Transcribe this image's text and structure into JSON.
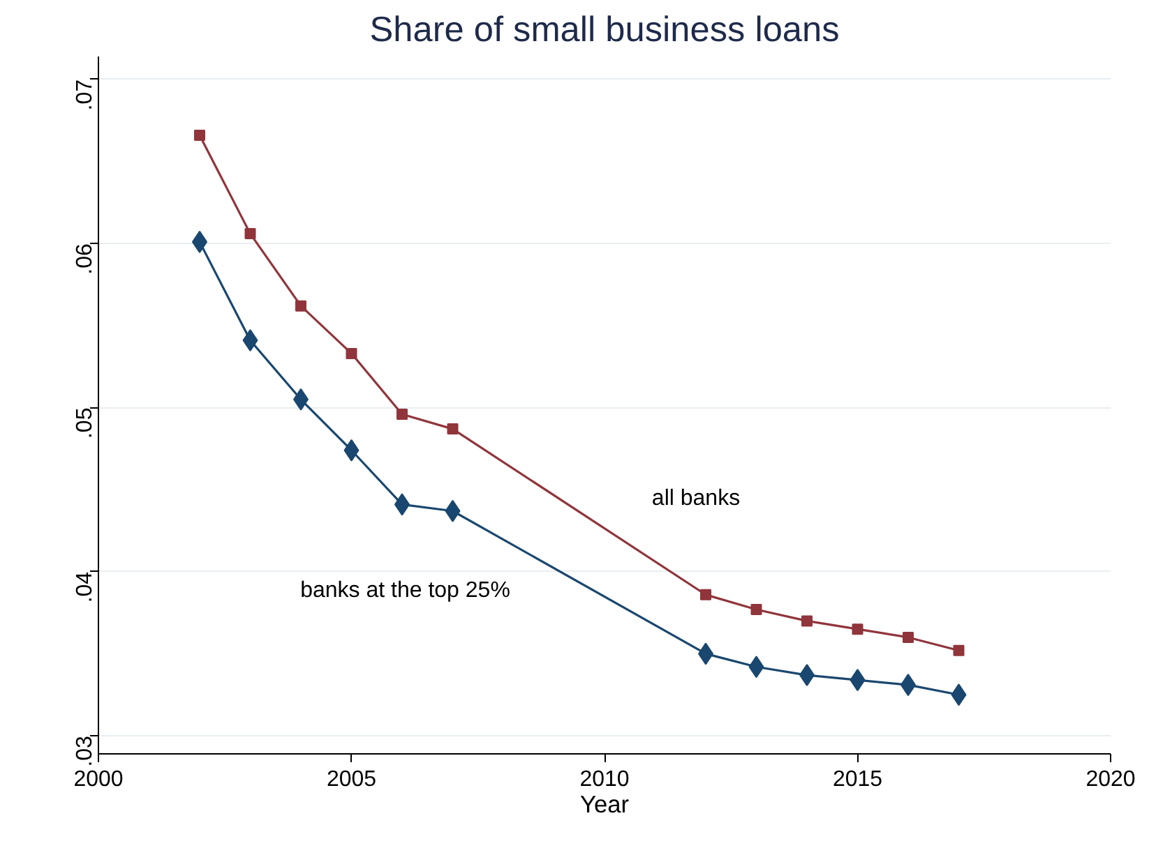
{
  "chart_data": {
    "type": "line",
    "title": "Share of small business loans",
    "xlabel": "Year",
    "x": [
      2002,
      2003,
      2004,
      2005,
      2006,
      2007,
      2012,
      2013,
      2014,
      2015,
      2016,
      2017
    ],
    "series": [
      {
        "name": "all banks",
        "color": "#90353b",
        "marker": "square",
        "values": [
          0.0666,
          0.0606,
          0.0562,
          0.0533,
          0.0496,
          0.0487,
          0.0386,
          0.0377,
          0.037,
          0.0365,
          0.036,
          0.0352
        ]
      },
      {
        "name": "banks at the top 25%",
        "color": "#1a476f",
        "marker": "diamond",
        "values": [
          0.0601,
          0.0541,
          0.0505,
          0.0474,
          0.0441,
          0.0437,
          0.035,
          0.0342,
          0.0337,
          0.0334,
          0.0331,
          0.0325
        ]
      }
    ],
    "xlim": [
      2000,
      2020
    ],
    "xticks": [
      2000,
      2005,
      2010,
      2015,
      2020
    ],
    "ylim": [
      0.0289,
      0.0714
    ],
    "yticks": [
      {
        "value": 0.03,
        "label": ".03"
      },
      {
        "value": 0.04,
        "label": ".04"
      },
      {
        "value": 0.05,
        "label": ".05"
      },
      {
        "value": 0.06,
        "label": ".06"
      },
      {
        "value": 0.07,
        "label": ".07"
      }
    ],
    "grid": "y",
    "legend": false,
    "line_style": "solid"
  }
}
